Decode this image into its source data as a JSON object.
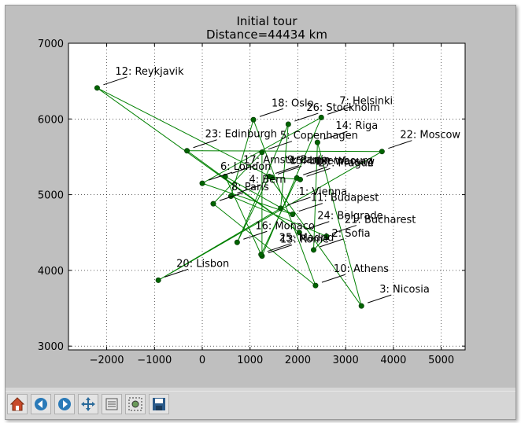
{
  "chart_data": {
    "type": "line",
    "title_line1": "Initial tour",
    "title_line2": "Distance=44434 km",
    "xlim": [
      -2800,
      5500
    ],
    "ylim": [
      2950,
      7000
    ],
    "xticks": [
      -2000,
      -1000,
      0,
      1000,
      2000,
      3000,
      4000,
      5000
    ],
    "yticks": [
      3000,
      4000,
      5000,
      6000,
      7000
    ],
    "grid": true,
    "line_color": "#008000",
    "marker_color": "#006400",
    "cities": [
      {
        "label": "1: Vienna",
        "x": 1640,
        "y": 4820
      },
      {
        "label": "2: Sofia",
        "x": 2330,
        "y": 4270
      },
      {
        "label": "3: Nicosia",
        "x": 3330,
        "y": 3530
      },
      {
        "label": "4: Bern",
        "x": 600,
        "y": 4980
      },
      {
        "label": "5: Copenhagen",
        "x": 1250,
        "y": 5560
      },
      {
        "label": "6: London",
        "x": 0,
        "y": 5150
      },
      {
        "label": "7: Helsinki",
        "x": 2490,
        "y": 6020
      },
      {
        "label": "8: Paris",
        "x": 230,
        "y": 4880
      },
      {
        "label": "9: Berlin",
        "x": 1400,
        "y": 5240
      },
      {
        "label": "10: Athens",
        "x": 2370,
        "y": 3800
      },
      {
        "label": "11: Budapest",
        "x": 1890,
        "y": 4740
      },
      {
        "label": "12: Reykjavik",
        "x": -2200,
        "y": 6410
      },
      {
        "label": "13: Rome",
        "x": 1250,
        "y": 4190
      },
      {
        "label": "14: Riga",
        "x": 2410,
        "y": 5690
      },
      {
        "label": "15: Luxembourg",
        "x": 1450,
        "y": 5230
      },
      {
        "label": "16: Monaco",
        "x": 730,
        "y": 4370
      },
      {
        "label": "17: Amsterdam",
        "x": 480,
        "y": 5240
      },
      {
        "label": "18: Oslo",
        "x": 1070,
        "y": 5990
      },
      {
        "label": "19: Warsaw",
        "x": 1980,
        "y": 5220
      },
      {
        "label": "20: Lisbon",
        "x": -920,
        "y": 3870
      },
      {
        "label": "21: Bucharest",
        "x": 2600,
        "y": 4450
      },
      {
        "label": "22: Moscow",
        "x": 3760,
        "y": 5570
      },
      {
        "label": "23: Edinburgh",
        "x": -320,
        "y": 5580
      },
      {
        "label": "24: Belgrade",
        "x": 2030,
        "y": 4500
      },
      {
        "label": "25: Madrid",
        "x": 1230,
        "y": 4210
      },
      {
        "label": "26: Stockholm",
        "x": 1800,
        "y": 5930
      },
      {
        "label": "27: Prague",
        "x": 2050,
        "y": 5200
      }
    ],
    "tour": [
      "12: Reykjavik",
      "24: Belgrade",
      "23: Edinburgh",
      "22: Moscow",
      "20: Lisbon",
      "1: Vienna",
      "26: Stockholm",
      "16: Monaco",
      "9: Berlin",
      "3: Nicosia",
      "14: Riga",
      "2: Sofia",
      "21: Bucharest",
      "4: Bern",
      "18: Oslo",
      "10: Athens",
      "8: Paris",
      "5: Copenhagen",
      "13: Rome",
      "7: Helsinki",
      "6: London",
      "11: Budapest",
      "17: Amsterdam",
      "25: Madrid",
      "19: Warsaw",
      "27: Prague",
      "15: Luxembourg",
      "12: Reykjavik"
    ]
  },
  "toolbar": {
    "buttons": [
      "home-icon",
      "back-icon",
      "forward-icon",
      "pan-icon",
      "subplots-icon",
      "zoom-icon",
      "save-icon"
    ]
  }
}
